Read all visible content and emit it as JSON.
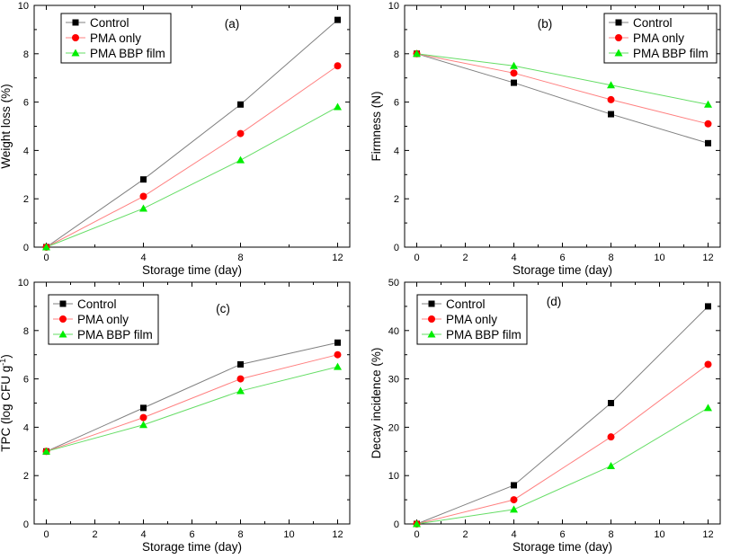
{
  "chart_data": [
    {
      "type": "line",
      "panel_label": "(a)",
      "xlabel": "Storage time (day)",
      "ylabel": "Weight loss (%)",
      "xlim": [
        -0.5,
        12.5
      ],
      "ylim": [
        0,
        10
      ],
      "xticks": [
        "0",
        "4",
        "8",
        "12"
      ],
      "yticks": [
        "0",
        "2",
        "4",
        "6",
        "8",
        "10"
      ],
      "legend_position": "top-left",
      "x": [
        0,
        4,
        8,
        12
      ],
      "series": [
        {
          "name": "Control",
          "values": [
            0,
            2.8,
            5.9,
            9.4
          ]
        },
        {
          "name": "PMA only",
          "values": [
            0,
            2.1,
            4.7,
            7.5
          ]
        },
        {
          "name": "PMA BBP film",
          "values": [
            0,
            1.6,
            3.6,
            5.8
          ]
        }
      ]
    },
    {
      "type": "line",
      "panel_label": "(b)",
      "xlabel": "Storage time (day)",
      "ylabel": "Firmness (N)",
      "xlim": [
        -0.5,
        12.5
      ],
      "ylim": [
        0,
        10
      ],
      "xticks": [
        "0",
        "2",
        "4",
        "6",
        "8",
        "10",
        "12"
      ],
      "yticks": [
        "0",
        "2",
        "4",
        "6",
        "8",
        "10"
      ],
      "legend_position": "top-right",
      "x": [
        0,
        4,
        8,
        12
      ],
      "series": [
        {
          "name": "Control",
          "values": [
            8,
            6.8,
            5.5,
            4.3
          ]
        },
        {
          "name": "PMA only",
          "values": [
            8,
            7.2,
            6.1,
            5.1
          ]
        },
        {
          "name": "PMA BBP film",
          "values": [
            8,
            7.5,
            6.7,
            5.9
          ]
        }
      ]
    },
    {
      "type": "line",
      "panel_label": "(c)",
      "xlabel": "Storage time (day)",
      "ylabel": "TPC (log CFU g",
      "ylabel_superscript": "-1",
      "ylabel_suffix": ")",
      "xlim": [
        -0.5,
        12.5
      ],
      "ylim": [
        0,
        10
      ],
      "xticks": [
        "0",
        "2",
        "4",
        "6",
        "8",
        "10",
        "12"
      ],
      "yticks": [
        "0",
        "2",
        "4",
        "6",
        "8",
        "10"
      ],
      "legend_position": "top-left",
      "x": [
        0,
        4,
        8,
        12
      ],
      "series": [
        {
          "name": "Control",
          "values": [
            3,
            4.8,
            6.6,
            7.5
          ]
        },
        {
          "name": "PMA only",
          "values": [
            3,
            4.4,
            6.0,
            7.0
          ]
        },
        {
          "name": "PMA BBP film",
          "values": [
            3,
            4.1,
            5.5,
            6.5
          ]
        }
      ]
    },
    {
      "type": "line",
      "panel_label": "(d)",
      "xlabel": "Storage time (day)",
      "ylabel": "Decay incidence (%)",
      "xlim": [
        -0.5,
        12.5
      ],
      "ylim": [
        0,
        50
      ],
      "xticks": [
        "0",
        "2",
        "4",
        "6",
        "8",
        "10",
        "12"
      ],
      "yticks": [
        "0",
        "10",
        "20",
        "30",
        "40",
        "50"
      ],
      "legend_position": "top-left",
      "x": [
        0,
        4,
        8,
        12
      ],
      "series": [
        {
          "name": "Control",
          "values": [
            0,
            8,
            25,
            45
          ]
        },
        {
          "name": "PMA only",
          "values": [
            0,
            5,
            18,
            33
          ]
        },
        {
          "name": "PMA BBP film",
          "values": [
            0,
            3,
            12,
            24
          ]
        }
      ]
    }
  ],
  "series_styles": [
    {
      "marker": "square",
      "marker_color": "#000000",
      "line_color": "#808080"
    },
    {
      "marker": "circle",
      "marker_color": "#ff0000",
      "line_color": "#ff8080"
    },
    {
      "marker": "triangle",
      "marker_color": "#00ee00",
      "line_color": "#66dd66"
    }
  ]
}
